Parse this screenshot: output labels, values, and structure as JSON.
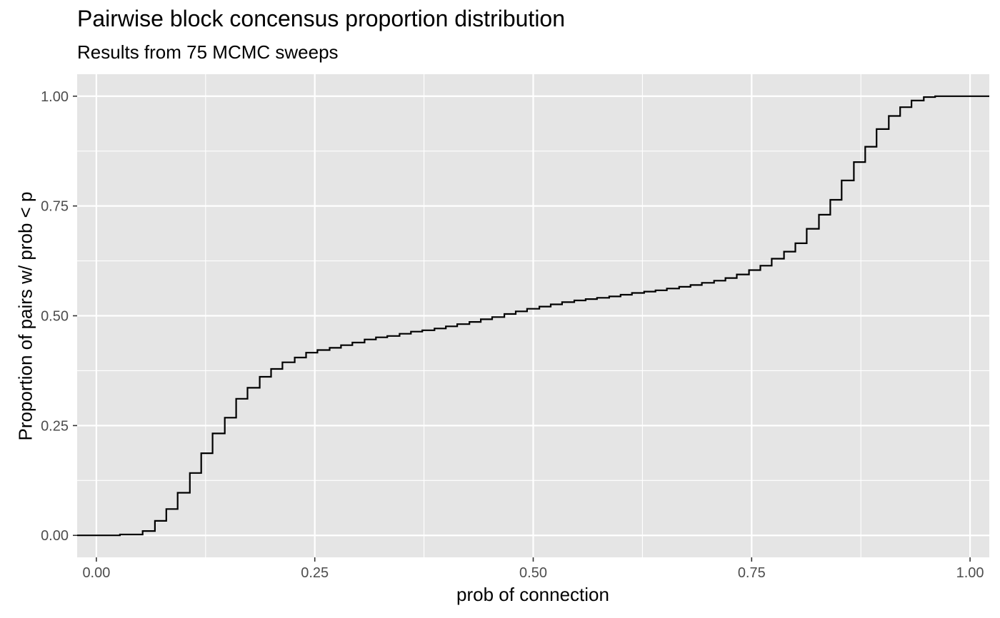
{
  "chart_data": {
    "type": "line",
    "step": true,
    "title": "Pairwise block concensus proportion distribution",
    "subtitle": "Results from 75 MCMC sweeps",
    "xlabel": "prob of connection",
    "ylabel": "Proportion of pairs w/ prob < p",
    "xlim": [
      -0.022,
      1.022
    ],
    "ylim": [
      -0.05,
      1.05
    ],
    "x_ticks": [
      0,
      0.25,
      0.5,
      0.75,
      1
    ],
    "x_tick_labels": [
      "0.00",
      "0.25",
      "0.50",
      "0.75",
      "1.00"
    ],
    "y_ticks": [
      0,
      0.25,
      0.5,
      0.75,
      1
    ],
    "y_tick_labels": [
      "0.00",
      "0.25",
      "0.50",
      "0.75",
      "1.00"
    ],
    "grid": true,
    "legend": "none",
    "colors": {
      "panel": "#e5e5e5",
      "grid": "#ffffff",
      "line": "#000000"
    },
    "series": [
      {
        "x": [
          -0.022,
          0.027,
          0.053,
          0.067,
          0.08,
          0.093,
          0.107,
          0.12,
          0.133,
          0.147,
          0.16,
          0.173,
          0.187,
          0.2,
          0.213,
          0.227,
          0.24,
          0.253,
          0.267,
          0.28,
          0.293,
          0.307,
          0.32,
          0.333,
          0.347,
          0.36,
          0.373,
          0.387,
          0.4,
          0.413,
          0.427,
          0.44,
          0.453,
          0.467,
          0.48,
          0.493,
          0.507,
          0.52,
          0.533,
          0.547,
          0.56,
          0.573,
          0.587,
          0.6,
          0.613,
          0.627,
          0.64,
          0.653,
          0.667,
          0.68,
          0.693,
          0.707,
          0.72,
          0.733,
          0.747,
          0.76,
          0.773,
          0.787,
          0.8,
          0.813,
          0.827,
          0.84,
          0.853,
          0.867,
          0.88,
          0.893,
          0.907,
          0.92,
          0.933,
          0.947,
          0.96,
          1.022
        ],
        "y": [
          0.0,
          0.002,
          0.01,
          0.033,
          0.06,
          0.097,
          0.142,
          0.187,
          0.232,
          0.268,
          0.311,
          0.336,
          0.361,
          0.379,
          0.394,
          0.405,
          0.416,
          0.422,
          0.427,
          0.433,
          0.439,
          0.446,
          0.451,
          0.454,
          0.459,
          0.464,
          0.467,
          0.471,
          0.476,
          0.481,
          0.486,
          0.492,
          0.497,
          0.504,
          0.51,
          0.516,
          0.521,
          0.526,
          0.531,
          0.535,
          0.538,
          0.541,
          0.544,
          0.548,
          0.552,
          0.555,
          0.558,
          0.562,
          0.566,
          0.57,
          0.575,
          0.58,
          0.586,
          0.594,
          0.604,
          0.614,
          0.63,
          0.646,
          0.665,
          0.698,
          0.73,
          0.764,
          0.808,
          0.85,
          0.885,
          0.925,
          0.955,
          0.975,
          0.99,
          0.998,
          1.0,
          1.0
        ]
      }
    ]
  }
}
